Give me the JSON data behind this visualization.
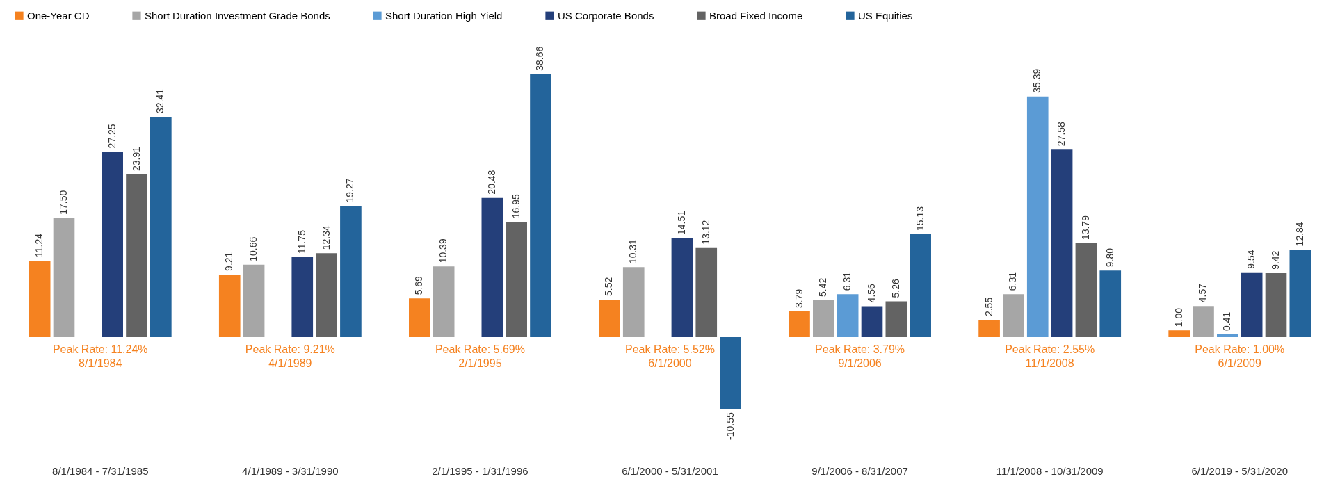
{
  "chart_data": {
    "type": "bar",
    "legend": "top",
    "categories": [
      "8/1/1984 - 7/31/1985",
      "4/1/1989 - 3/31/1990",
      "2/1/1995 - 1/31/1996",
      "6/1/2000 - 5/31/2001",
      "9/1/2006 - 8/31/2007",
      "11/1/2008 - 10/31/2009",
      "6/1/2019 - 5/31/2020"
    ],
    "series": [
      {
        "name": "One-Year CD",
        "color": "#f58220",
        "values": [
          11.24,
          9.21,
          5.69,
          5.52,
          3.79,
          2.55,
          1.0
        ],
        "value_labels": [
          "11.24",
          "9.21",
          "5.69",
          "5.52",
          "3.79",
          "2.55",
          "1.00"
        ]
      },
      {
        "name": "Short Duration Investment Grade Bonds",
        "color": "#a6a6a6",
        "values": [
          17.5,
          10.66,
          10.39,
          10.31,
          5.42,
          6.31,
          4.57
        ],
        "value_labels": [
          "17.50",
          "10.66",
          "10.39",
          "10.31",
          "5.42",
          "6.31",
          "4.57"
        ]
      },
      {
        "name": "Short Duration High Yield",
        "color": "#5b9bd5",
        "values": [
          null,
          null,
          null,
          null,
          6.31,
          35.39,
          0.41
        ],
        "value_labels": [
          null,
          null,
          null,
          null,
          "6.31",
          "35.39",
          "0.41"
        ]
      },
      {
        "name": "US Corporate Bonds",
        "color": "#243f7a",
        "values": [
          27.25,
          11.75,
          20.48,
          14.51,
          4.56,
          27.58,
          9.54
        ],
        "value_labels": [
          "27.25",
          "11.75",
          "20.48",
          "14.51",
          "4.56",
          "27.58",
          "9.54"
        ]
      },
      {
        "name": "Broad Fixed Income",
        "color": "#636363",
        "values": [
          23.91,
          12.34,
          16.95,
          13.12,
          5.26,
          13.79,
          9.42
        ],
        "value_labels": [
          "23.91",
          "12.34",
          "16.95",
          "13.12",
          "5.26",
          "13.79",
          "9.42"
        ]
      },
      {
        "name": "US Equities",
        "color": "#23649b",
        "values": [
          32.41,
          19.27,
          38.66,
          -10.55,
          15.13,
          9.8,
          12.84
        ],
        "value_labels": [
          "32.41",
          "19.27",
          "38.66",
          "-10.55",
          "15.13",
          "9.80",
          "12.84"
        ]
      }
    ],
    "annotations": [
      "Peak Rate: 11.24%\n8/1/1984",
      "Peak Rate: 9.21%\n4/1/1989",
      "Peak Rate: 5.69%\n2/1/1995",
      "Peak Rate: 5.52%\n6/1/2000",
      "Peak Rate: 3.79%\n9/1/2006",
      "Peak Rate: 2.55%\n11/1/2008",
      "Peak Rate: 1.00%\n6/1/2009"
    ]
  }
}
